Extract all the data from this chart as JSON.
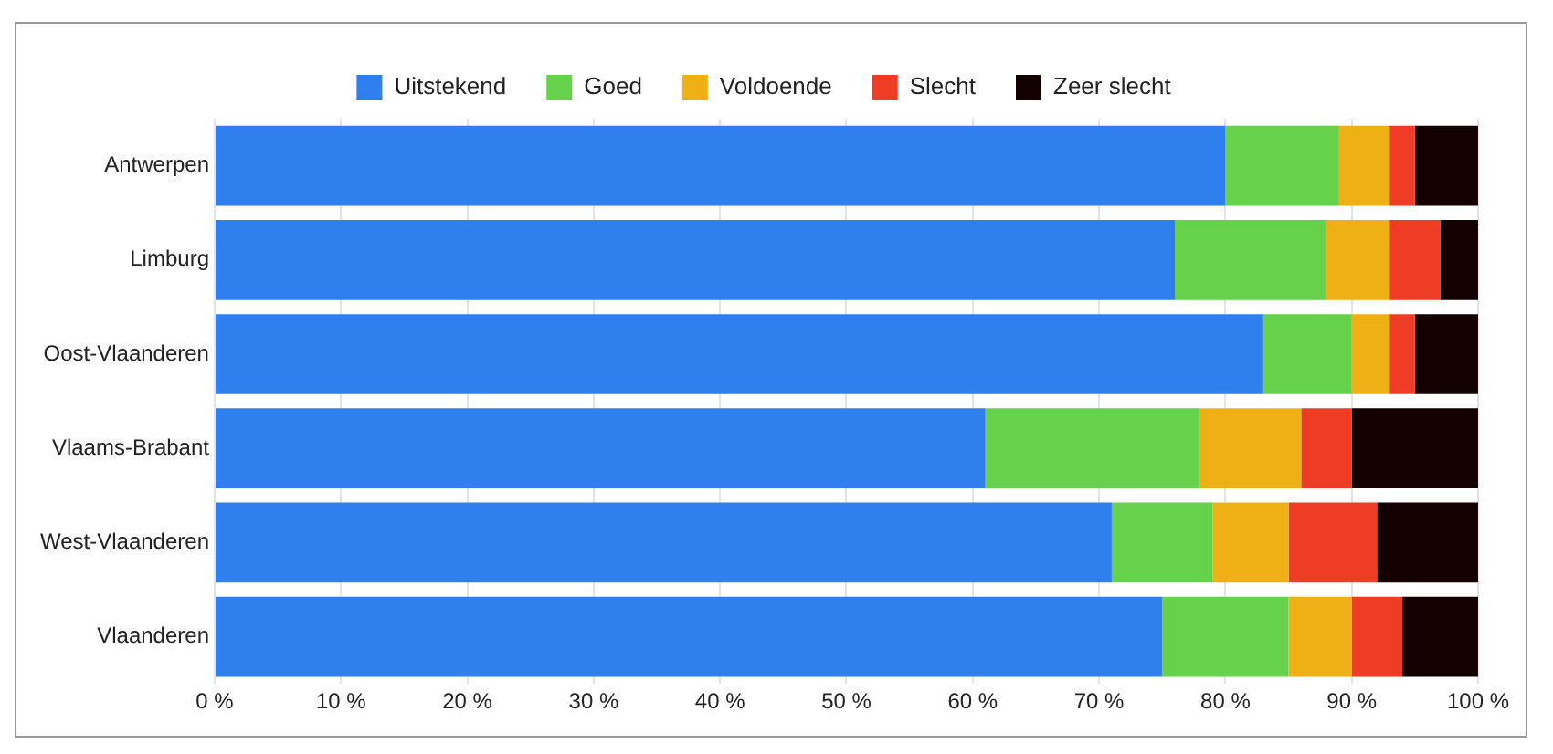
{
  "chart_data": {
    "type": "bar",
    "orientation": "horizontal",
    "stacked": true,
    "categories": [
      "Antwerpen",
      "Limburg",
      "Oost-Vlaanderen",
      "Vlaams-Brabant",
      "West-Vlaanderen",
      "Vlaanderen"
    ],
    "series": [
      {
        "name": "Uitstekend",
        "color": "#2f7fef",
        "values": [
          80,
          76,
          83,
          61,
          71,
          75
        ]
      },
      {
        "name": "Goed",
        "color": "#66d14a",
        "values": [
          9,
          12,
          7,
          17,
          8,
          10
        ]
      },
      {
        "name": "Voldoende",
        "color": "#efb015",
        "values": [
          4,
          5,
          3,
          8,
          6,
          5
        ]
      },
      {
        "name": "Slecht",
        "color": "#ee3d24",
        "values": [
          2,
          4,
          2,
          4,
          7,
          4
        ]
      },
      {
        "name": "Zeer slecht",
        "color": "#150000",
        "values": [
          5,
          3,
          5,
          10,
          8,
          6
        ]
      }
    ],
    "xlim": [
      0,
      100
    ],
    "xticks": [
      {
        "value": 0,
        "label": "0 %"
      },
      {
        "value": 10,
        "label": "10 %"
      },
      {
        "value": 20,
        "label": "20 %"
      },
      {
        "value": 30,
        "label": "30 %"
      },
      {
        "value": 40,
        "label": "40 %"
      },
      {
        "value": 50,
        "label": "50 %"
      },
      {
        "value": 60,
        "label": "60 %"
      },
      {
        "value": 70,
        "label": "70 %"
      },
      {
        "value": 80,
        "label": "80 %"
      },
      {
        "value": 90,
        "label": "90 %"
      },
      {
        "value": 100,
        "label": "100 %"
      }
    ],
    "grid": "x",
    "legend": "top"
  }
}
